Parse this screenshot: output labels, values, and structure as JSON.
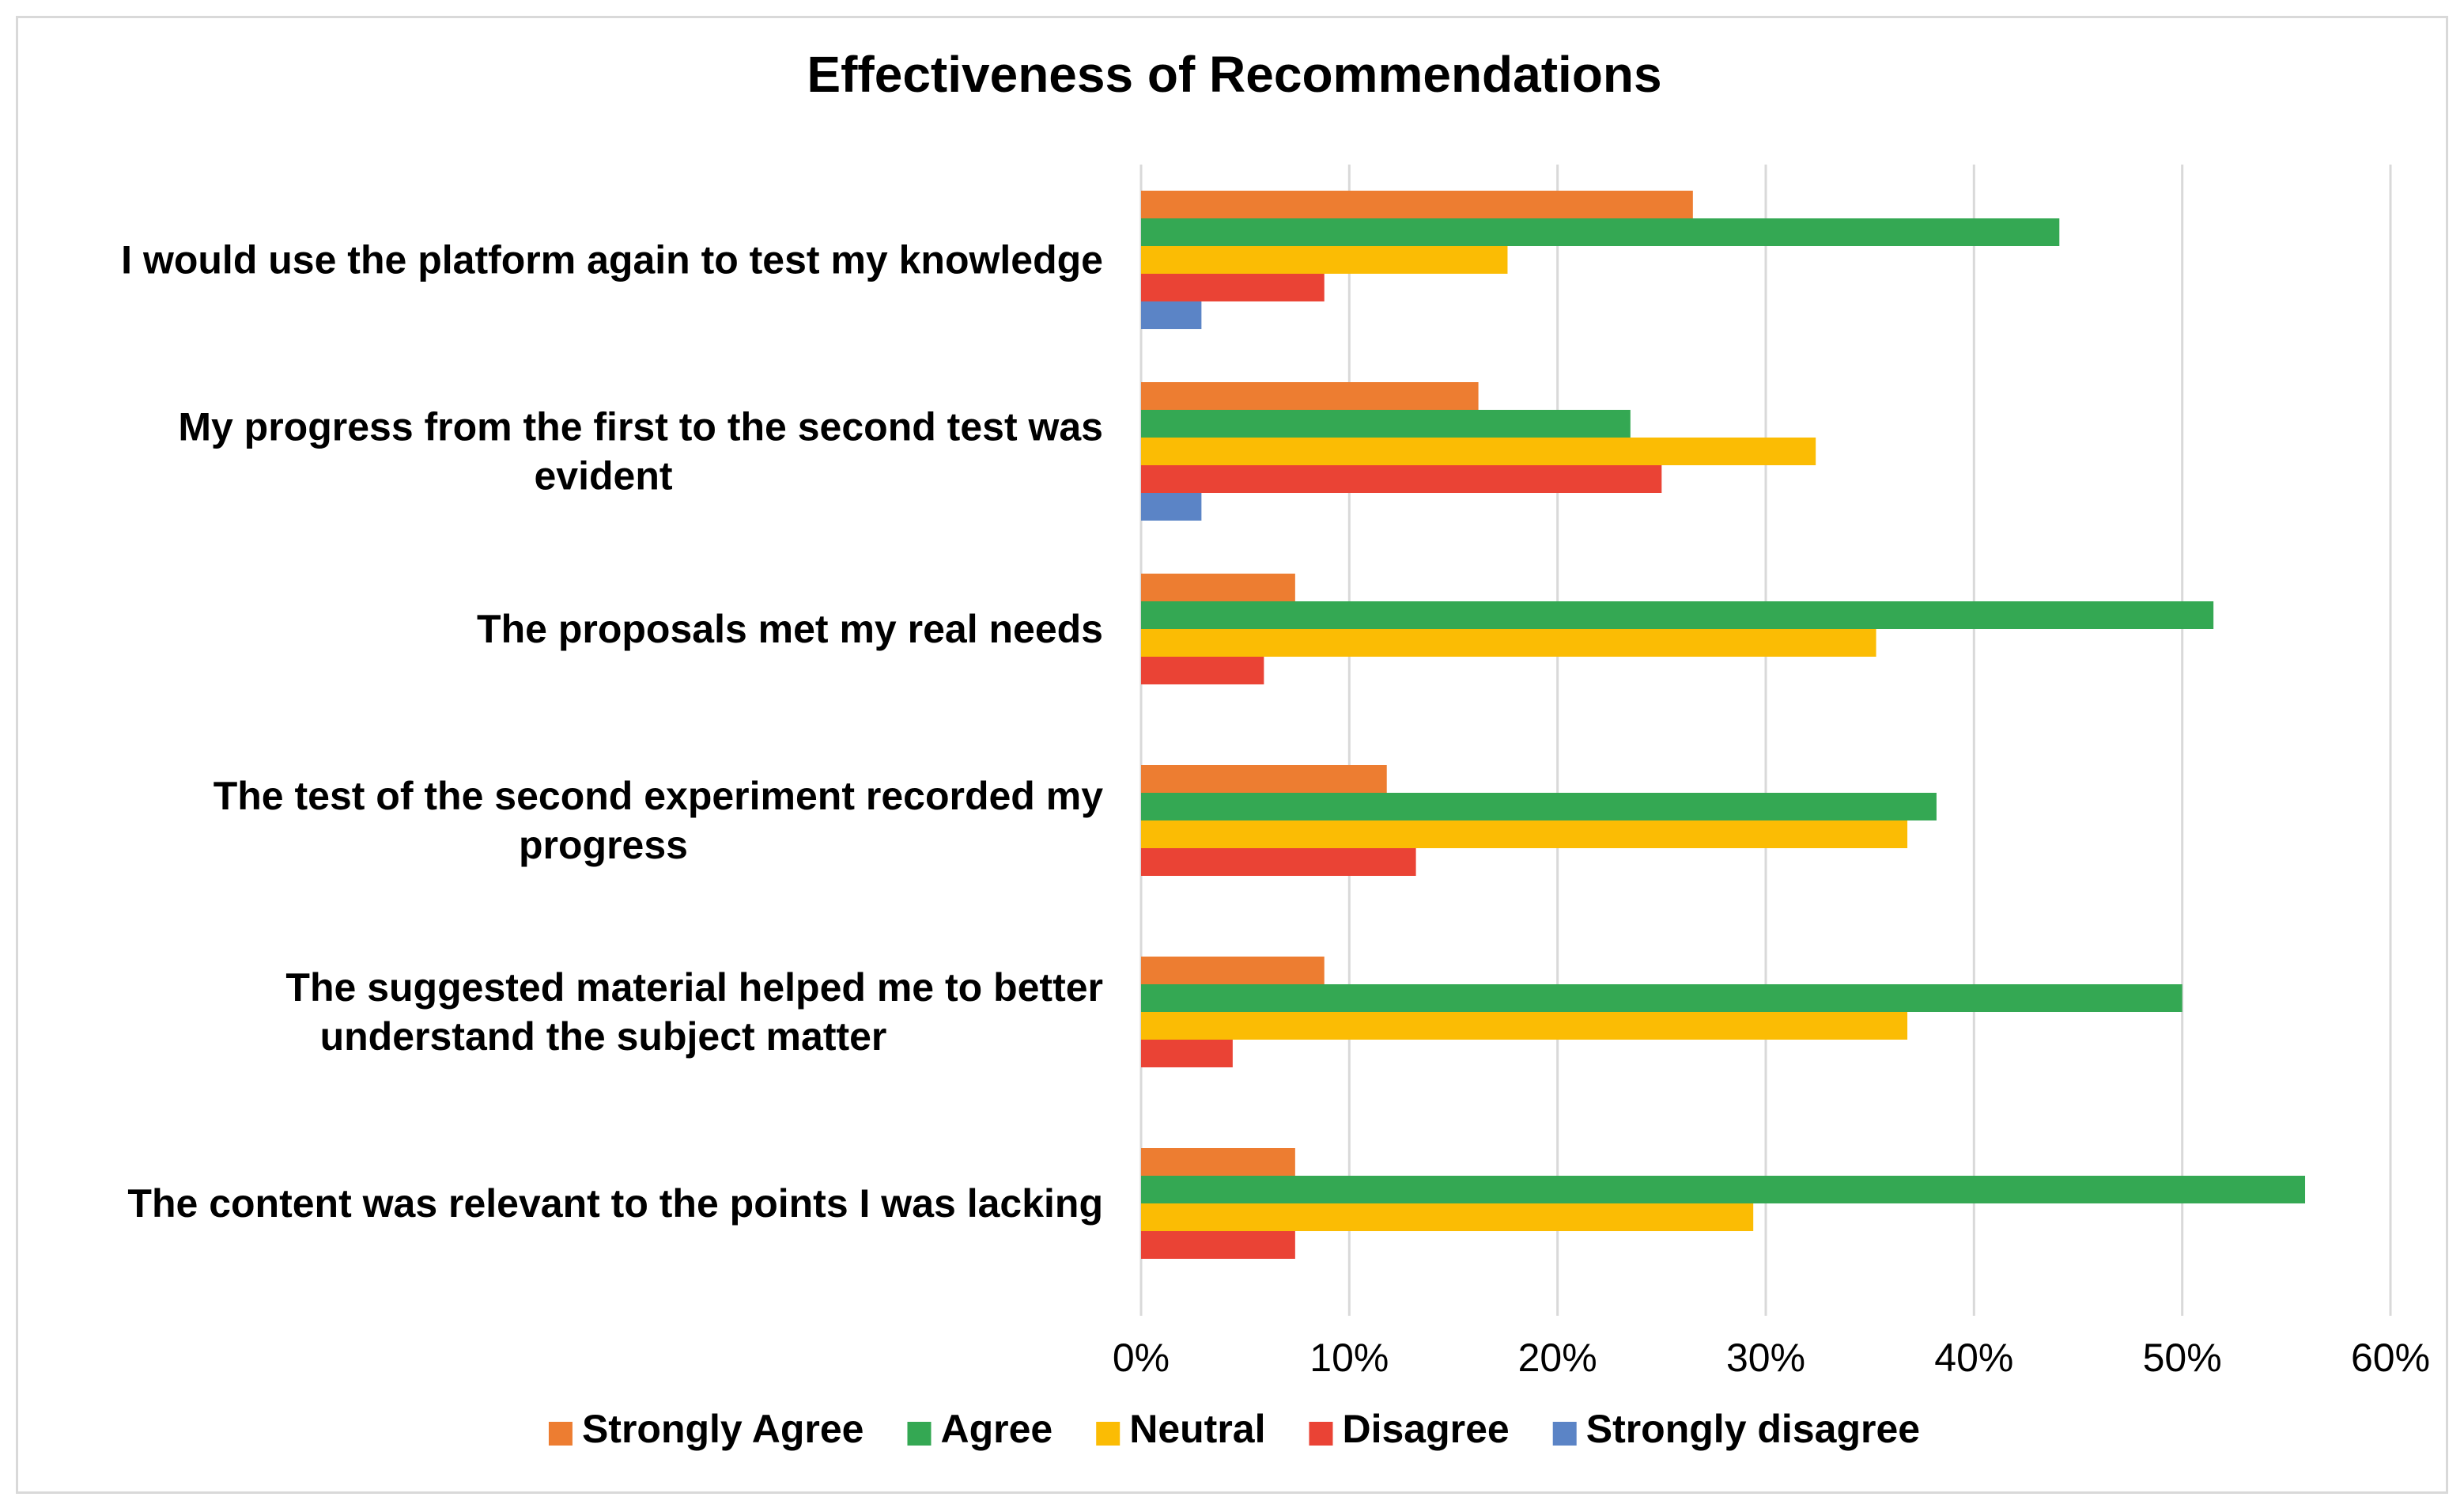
{
  "chart_data": {
    "type": "bar",
    "orientation": "horizontal",
    "title": "Effectiveness of Recommendations",
    "xlabel": "",
    "ylabel": "",
    "xlim": [
      0,
      60
    ],
    "x_ticks": [
      0,
      10,
      20,
      30,
      40,
      50,
      60
    ],
    "x_tick_labels": [
      "0%",
      "10%",
      "20%",
      "30%",
      "40%",
      "50%",
      "60%"
    ],
    "grid": "vertical",
    "legend_position": "bottom",
    "categories": [
      [
        "I would use the platform again to test my knowledge"
      ],
      [
        "My progress from the first to the second test was",
        "evident"
      ],
      [
        "The proposals met my real needs"
      ],
      [
        "The test of the second experiment recorded my",
        "progress"
      ],
      [
        "The suggested material helped me to better",
        "understand the subject matter"
      ],
      [
        "The content was relevant to the points I was lacking"
      ]
    ],
    "series": [
      {
        "name": "Strongly Agree",
        "color": "#ED7D31",
        "values": [
          26.5,
          16.2,
          7.4,
          11.8,
          8.8,
          7.4
        ]
      },
      {
        "name": "Agree",
        "color": "#34A853",
        "values": [
          44.1,
          23.5,
          51.5,
          38.2,
          50.0,
          55.9
        ]
      },
      {
        "name": "Neutral",
        "color": "#FBBC04",
        "values": [
          17.6,
          32.4,
          35.3,
          36.8,
          36.8,
          29.4
        ]
      },
      {
        "name": "Disagree",
        "color": "#EA4335",
        "values": [
          8.8,
          25.0,
          5.9,
          13.2,
          4.4,
          7.4
        ]
      },
      {
        "name": "Strongly disagree",
        "color": "#5B84C6",
        "values": [
          2.9,
          2.9,
          0,
          0,
          0,
          0
        ]
      }
    ]
  }
}
